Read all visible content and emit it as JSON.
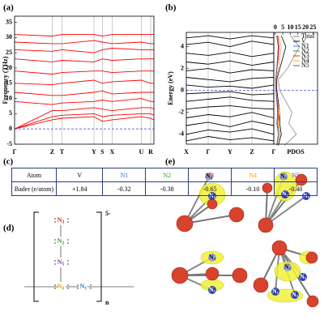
{
  "panel_labels": [
    "(a)",
    "(b)",
    "(c)",
    "(d)",
    "(e)"
  ],
  "chart_data": [
    {
      "type": "line",
      "ylabel": "Frequency (THz)",
      "color": "#ff0000",
      "xgrid": true,
      "xlim": [
        0,
        1
      ],
      "ylim": [
        -5,
        37
      ],
      "yticks": [
        -5,
        0,
        5,
        10,
        15,
        20,
        25,
        30,
        35
      ],
      "xticks": [
        {
          "value": 0,
          "label": "Γ"
        },
        {
          "value": 0.27,
          "label": "Z"
        },
        {
          "value": 0.34,
          "label": "T"
        },
        {
          "value": 0.57,
          "label": "Y"
        },
        {
          "value": 0.63,
          "label": "S"
        },
        {
          "value": 0.7,
          "label": "X"
        },
        {
          "value": 0.91,
          "label": "U"
        },
        {
          "value": 0.977,
          "label": "R"
        }
      ],
      "x": [
        0,
        0.27,
        0.34,
        0.57,
        0.63,
        0.7,
        0.91,
        0.977,
        1
      ],
      "series": [
        {
          "values": [
            0,
            3,
            3.5,
            4,
            2.5,
            3,
            4,
            3.5,
            3
          ]
        },
        {
          "values": [
            0,
            4,
            4.5,
            5,
            4,
            4.5,
            5,
            5,
            4.5
          ]
        },
        {
          "values": [
            0,
            6,
            6,
            7,
            6.5,
            6,
            7,
            7,
            6.5
          ]
        },
        {
          "values": [
            9,
            8,
            8.5,
            9,
            9.5,
            9,
            10,
            9,
            9
          ]
        },
        {
          "values": [
            12,
            11,
            11,
            12,
            12.5,
            11.5,
            12,
            12,
            12
          ]
        },
        {
          "values": [
            15,
            14.5,
            15,
            16,
            15,
            15.5,
            16,
            15,
            15
          ]
        },
        {
          "values": [
            19,
            18,
            18.5,
            19,
            19,
            18.5,
            19,
            19,
            19
          ]
        },
        {
          "values": [
            23,
            22,
            22.5,
            22,
            23,
            22.5,
            23,
            23,
            23
          ]
        },
        {
          "values": [
            26,
            25.5,
            26,
            25,
            26,
            26.5,
            26,
            26,
            26
          ]
        },
        {
          "values": [
            28.5,
            28,
            28,
            29,
            28.5,
            28,
            28.5,
            28,
            28
          ]
        },
        {
          "values": [
            31,
            30.5,
            31,
            31,
            30.5,
            31,
            31,
            31,
            31
          ]
        }
      ],
      "ref_line": {
        "value": 0,
        "color": "#4a5fd0"
      }
    },
    {
      "type": "line",
      "ylabel": "Energy (eV)",
      "color": "#000000",
      "xgrid": true,
      "xlim": [
        0,
        1
      ],
      "ylim": [
        -4.9,
        5.3
      ],
      "yticks": [
        -4,
        -2,
        0,
        2,
        4
      ],
      "xticks": [
        {
          "value": 0,
          "label": "X"
        },
        {
          "value": 0.25,
          "label": "Γ"
        },
        {
          "value": 0.5,
          "label": "Y"
        },
        {
          "value": 0.75,
          "label": "Z"
        },
        {
          "value": 1,
          "label": "Γ"
        }
      ],
      "x": [
        0,
        0.25,
        0.5,
        0.75,
        1
      ],
      "series": [
        {
          "values": [
            -4.6,
            -4.2,
            -4.5,
            -4.3,
            -4.6
          ]
        },
        {
          "values": [
            -4,
            -3.6,
            -3.8,
            -3.5,
            -4
          ]
        },
        {
          "values": [
            -3.2,
            -2.9,
            -3.3,
            -2.8,
            -3.2
          ]
        },
        {
          "values": [
            -2.5,
            -2.2,
            -2.4,
            -2,
            -2.5
          ]
        },
        {
          "values": [
            -1.7,
            -1.5,
            -1.4,
            -1.6,
            -1.7
          ]
        },
        {
          "values": [
            -1,
            -0.8,
            -0.6,
            -0.9,
            -1
          ]
        },
        {
          "values": [
            -0.3,
            -0.2,
            -0.1,
            -0.4,
            -0.3
          ]
        },
        {
          "values": [
            0.5,
            0.3,
            0.4,
            0.2,
            0.5
          ]
        },
        {
          "values": [
            1.2,
            1,
            0.8,
            1.1,
            1.2
          ]
        },
        {
          "values": [
            1.8,
            2,
            1.6,
            1.9,
            1.8
          ]
        },
        {
          "values": [
            2.6,
            2.4,
            2.7,
            2.3,
            2.6
          ]
        },
        {
          "values": [
            3.4,
            3.2,
            3.5,
            3.1,
            3.4
          ]
        },
        {
          "values": [
            4.2,
            4.4,
            4,
            4.5,
            4.2
          ]
        },
        {
          "values": [
            4.8,
            5,
            4.7,
            5,
            4.8
          ]
        }
      ],
      "ref_line": {
        "value": 0,
        "color": "#4a5fd0"
      },
      "pdos": {
        "xlabel": "PDOS",
        "xlim": [
          -1,
          28
        ],
        "xticks": [
          0,
          5,
          10,
          15,
          20,
          25
        ],
        "energies": [
          -5,
          -4,
          -3,
          -2,
          -1,
          0,
          1,
          2,
          3,
          4,
          5
        ],
        "series": [
          {
            "name": "Total",
            "color": "#888888",
            "values": [
              6,
              14,
              9,
              11,
              7,
              3,
              2,
              8,
              12,
              16,
              10
            ]
          },
          {
            "name": "V",
            "color": "#000000",
            "values": [
              2,
              4,
              3,
              3,
              2,
              1,
              1,
              3,
              5,
              7,
              4
            ]
          },
          {
            "name": "N1",
            "color": "#3a6fc4",
            "values": [
              1,
              3,
              2,
              2,
              1,
              0.5,
              0.4,
              1,
              2,
              2,
              1
            ]
          },
          {
            "name": "N2",
            "color": "#2ca02c",
            "values": [
              1,
              2,
              1.5,
              2,
              1,
              0.5,
              0.3,
              1,
              1.5,
              2,
              1
            ]
          },
          {
            "name": "N3",
            "color": "#e02020",
            "values": [
              1,
              3,
              2,
              2,
              1.5,
              0.6,
              0.4,
              1,
              2,
              2.5,
              1.5
            ]
          },
          {
            "name": "N4",
            "color": "#f0a020",
            "values": [
              1,
              3,
              2,
              3,
              1.5,
              0.5,
              0.5,
              2,
              3,
              4,
              2
            ]
          },
          {
            "name": "N5",
            "color": "#8040a0",
            "values": [
              1,
              2,
              1,
              1.5,
              1,
              0.5,
              0.4,
              1,
              1.5,
              2,
              1
            ]
          }
        ]
      }
    }
  ],
  "table": {
    "header": [
      "Atom",
      "V",
      "N1",
      "N2",
      "N3",
      "N4",
      "N5"
    ],
    "header_colors": [
      "#000000",
      "#000000",
      "#3a6fc4",
      "#2ca02c",
      "#e02020",
      "#f0a020",
      "#8040a0"
    ],
    "rows": [
      [
        "Bader (e/atom)",
        "+1.84",
        "-0.32",
        "-0.38",
        "-0.65",
        "-0.10",
        "-0.40"
      ]
    ]
  },
  "lewis": {
    "atoms": [
      {
        "symbol": "N",
        "sub": "3",
        "color": "#e02020"
      },
      {
        "symbol": "N",
        "sub": "2",
        "color": "#2ca02c"
      },
      {
        "symbol": "N",
        "sub": "5",
        "color": "#8040a0"
      },
      {
        "symbol": "N",
        "sub": "4",
        "color": "#e0a000"
      },
      {
        "symbol": "N",
        "sub": "1",
        "color": "#3a6fc4"
      }
    ],
    "charge": "5-",
    "repeat": "n"
  },
  "charge_density": {
    "panels": [
      [
        {
          "symbol": "N",
          "sub": "2"
        },
        {
          "symbol": "N",
          "sub": "3"
        }
      ],
      [
        {
          "symbol": "N",
          "sub": "3"
        },
        {
          "symbol": "N",
          "sub": "2"
        },
        {
          "symbol": "N",
          "sub": "5"
        }
      ],
      [
        {
          "symbol": "N",
          "sub": "2"
        },
        {
          "symbol": "N",
          "sub": "1"
        }
      ],
      [
        {
          "symbol": "N",
          "sub": "2"
        },
        {
          "symbol": "N",
          "sub": "5"
        },
        {
          "symbol": "N",
          "sub": "1"
        },
        {
          "symbol": "N",
          "sub": "3"
        }
      ]
    ]
  }
}
